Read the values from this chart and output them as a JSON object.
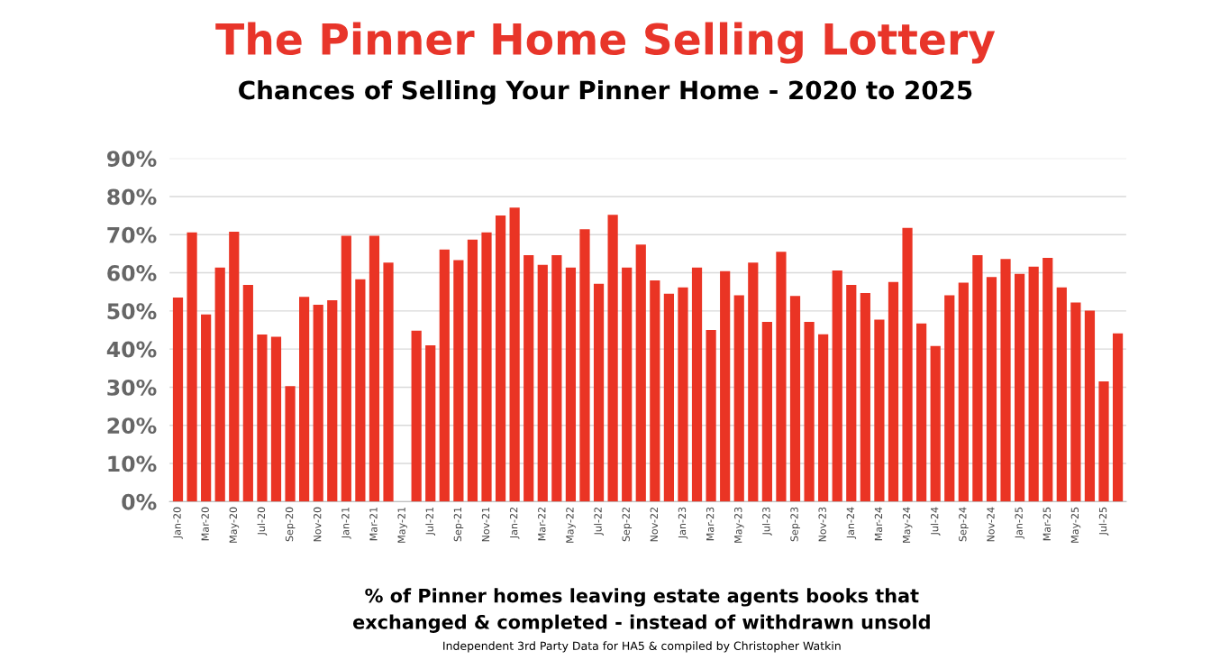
{
  "chart_data": {
    "type": "bar",
    "title": "The Pinner Home Selling Lottery",
    "subtitle": "Chances of Selling Your Pinner Home - 2020 to 2025",
    "categories": [
      "Jan-20",
      null,
      "Mar-20",
      null,
      "May-20",
      null,
      "Jul-20",
      null,
      "Sep-20",
      null,
      "Nov-20",
      null,
      "Jan-21",
      null,
      "Mar-21",
      null,
      "May-21",
      null,
      "Jul-21",
      null,
      "Sep-21",
      null,
      "Nov-21",
      null,
      "Jan-22",
      null,
      "Mar-22",
      null,
      "May-22",
      null,
      "Jul-22",
      null,
      "Sep-22",
      null,
      "Nov-22",
      null,
      "Jan-23",
      null,
      "Mar-23",
      null,
      "May-23",
      null,
      "Jul-23",
      null,
      "Sep-23",
      null,
      "Nov-23",
      null,
      "Jan-24",
      null,
      "Mar-24",
      null,
      "May-24",
      null,
      "Jul-24",
      null,
      "Sep-24",
      null,
      "Nov-24",
      null,
      "Jan-25",
      null,
      "Mar-25",
      null,
      "May-25",
      null,
      "Jul-25",
      null
    ],
    "values": [
      53.5,
      70.6,
      49.1,
      61.4,
      70.8,
      56.8,
      43.8,
      43.2,
      30.3,
      53.7,
      51.6,
      52.8,
      69.7,
      58.3,
      69.7,
      62.7,
      null,
      44.8,
      41.0,
      66.1,
      63.3,
      68.7,
      70.6,
      75.0,
      77.1,
      64.6,
      62.1,
      64.6,
      61.4,
      71.4,
      57.1,
      75.2,
      61.4,
      67.4,
      58.0,
      54.5,
      56.2,
      61.4,
      45.0,
      60.4,
      54.1,
      62.7,
      47.1,
      65.5,
      53.9,
      47.1,
      43.9,
      60.6,
      56.8,
      54.7,
      47.7,
      57.6,
      71.8,
      46.7,
      40.8,
      54.1,
      57.4,
      64.6,
      58.9,
      63.6,
      59.7,
      61.6,
      63.9,
      56.2,
      52.2,
      50.1,
      31.5,
      44.1
    ],
    "color": "#ea3424",
    "ylim": [
      0,
      90
    ],
    "yticks": [
      {
        "value": 0,
        "label": "0%"
      },
      {
        "value": 10,
        "label": "10%"
      },
      {
        "value": 20,
        "label": "20%"
      },
      {
        "value": 30,
        "label": "30%"
      },
      {
        "value": 40,
        "label": "40%"
      },
      {
        "value": 50,
        "label": "50%"
      },
      {
        "value": 60,
        "label": "60%"
      },
      {
        "value": 70,
        "label": "70%"
      },
      {
        "value": 80,
        "label": "80%"
      },
      {
        "value": 90,
        "label": "90%"
      }
    ],
    "grid": "y",
    "annotations": [
      "% of Pinner homes leaving estate agents books that",
      "exchanged & completed - instead of withdrawn unsold",
      "Independent 3rd Party Data for HA5 & compiled by Christopher Watkin"
    ]
  }
}
